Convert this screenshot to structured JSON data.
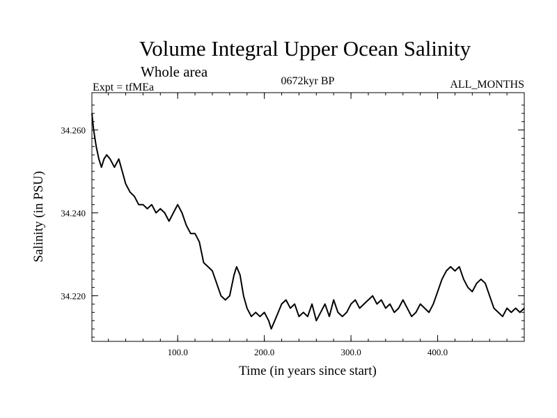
{
  "chart_data": {
    "type": "line",
    "title": "Volume Integral Upper Ocean Salinity",
    "subtitle": "Whole area",
    "header_left": "Expt = tfMEa",
    "header_center": "0672kyr BP",
    "header_right": "ALL_MONTHS",
    "xlabel": "Time (in years since start)",
    "ylabel": "Salinity (in PSU)",
    "xlim": [
      1,
      500
    ],
    "ylim": [
      34.209,
      34.269
    ],
    "x_ticks": [
      100,
      200,
      300,
      400
    ],
    "x_tick_labels": [
      "100.0",
      "200.0",
      "300.0",
      "400.0"
    ],
    "y_ticks": [
      34.22,
      34.24,
      34.26
    ],
    "y_tick_labels": [
      "34.220",
      "34.240",
      "34.260"
    ],
    "series": [
      {
        "x": [
          1,
          3,
          6,
          9,
          12,
          15,
          18,
          22,
          27,
          32,
          36,
          40,
          45,
          50,
          55,
          60,
          65,
          70,
          75,
          80,
          85,
          90,
          95,
          100,
          105,
          110,
          115,
          120,
          125,
          130,
          135,
          140,
          145,
          150,
          155,
          160,
          165,
          168,
          172,
          176,
          180,
          185,
          190,
          195,
          200,
          205,
          208,
          212,
          216,
          220,
          225,
          230,
          235,
          240,
          245,
          250,
          255,
          260,
          265,
          270,
          275,
          280,
          285,
          290,
          295,
          300,
          305,
          310,
          315,
          320,
          325,
          330,
          335,
          340,
          345,
          350,
          355,
          360,
          365,
          370,
          375,
          380,
          385,
          390,
          395,
          400,
          405,
          410,
          415,
          420,
          425,
          430,
          435,
          440,
          445,
          450,
          455,
          460,
          465,
          470,
          475,
          480,
          485,
          490,
          495,
          500
        ],
        "y": [
          34.264,
          34.26,
          34.256,
          34.253,
          34.251,
          34.253,
          34.254,
          34.253,
          34.251,
          34.253,
          34.25,
          34.247,
          34.245,
          34.244,
          34.242,
          34.242,
          34.241,
          34.242,
          34.24,
          34.241,
          34.24,
          34.238,
          34.24,
          34.242,
          34.24,
          34.237,
          34.235,
          34.235,
          34.233,
          34.228,
          34.227,
          34.226,
          34.223,
          34.22,
          34.219,
          34.22,
          34.225,
          34.227,
          34.225,
          34.22,
          34.217,
          34.215,
          34.216,
          34.215,
          34.216,
          34.214,
          34.212,
          34.214,
          34.216,
          34.218,
          34.219,
          34.217,
          34.218,
          34.215,
          34.216,
          34.215,
          34.218,
          34.214,
          34.216,
          34.218,
          34.215,
          34.219,
          34.216,
          34.215,
          34.216,
          34.218,
          34.219,
          34.217,
          34.218,
          34.219,
          34.22,
          34.218,
          34.219,
          34.217,
          34.218,
          34.216,
          34.217,
          34.219,
          34.217,
          34.215,
          34.216,
          34.218,
          34.217,
          34.216,
          34.218,
          34.221,
          34.224,
          34.226,
          34.227,
          34.226,
          34.227,
          34.224,
          34.222,
          34.221,
          34.223,
          34.224,
          34.223,
          34.22,
          34.217,
          34.216,
          34.215,
          34.217,
          34.216,
          34.217,
          34.216,
          34.217
        ]
      }
    ]
  }
}
